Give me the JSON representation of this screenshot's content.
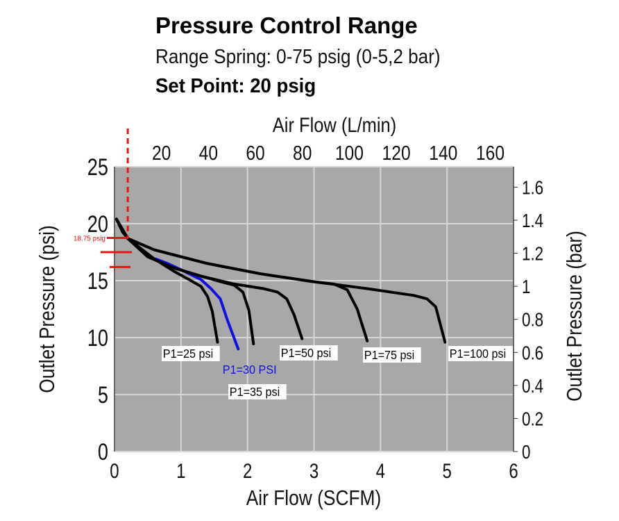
{
  "header": {
    "title": "Pressure Control Range",
    "subtitle": "Range Spring: 0-75 psig (0-5,2 bar)",
    "set_point": "Set Point: 20 psig"
  },
  "chart_data": {
    "type": "line",
    "title": "Pressure Control Range",
    "xlabel": "Air Flow (SCFM)",
    "ylabel": "Outlet Pressure (psi)",
    "x2label": "Air Flow (L/min)",
    "y2label": "Outlet Pressure (bar)",
    "xlim": [
      0,
      6
    ],
    "ylim": [
      0,
      25
    ],
    "xticks": [
      "0",
      "1",
      "2",
      "3",
      "4",
      "5",
      "6"
    ],
    "yticks": [
      "0",
      "5",
      "10",
      "15",
      "20",
      "25"
    ],
    "x2ticks": [
      "20",
      "40",
      "60",
      "80",
      "100",
      "120",
      "140",
      "160"
    ],
    "y2ticks": [
      "0",
      "0.2",
      "0.4",
      "0.6",
      "0.8",
      "1",
      "1.2",
      "1.4",
      "1.6"
    ],
    "grid": true,
    "colors": {
      "background": "#a8a8a8",
      "curve": "#000000",
      "highlight": "#1010e0",
      "marker": "#ee1111"
    },
    "series": [
      {
        "name": "P1=25 psi",
        "color": "#000000",
        "points": [
          [
            0.03,
            20.4
          ],
          [
            0.12,
            19.3
          ],
          [
            0.2,
            18.7
          ],
          [
            0.4,
            17.8
          ],
          [
            0.6,
            16.9
          ],
          [
            0.9,
            15.8
          ],
          [
            1.15,
            15.0
          ],
          [
            1.3,
            14.5
          ],
          [
            1.4,
            13.6
          ],
          [
            1.47,
            12.3
          ],
          [
            1.55,
            9.6
          ]
        ]
      },
      {
        "name": "P1=30 PSI",
        "color": "#1010e0",
        "points": [
          [
            0.62,
            16.9
          ],
          [
            0.8,
            16.5
          ],
          [
            1.02,
            15.9
          ],
          [
            1.3,
            15.1
          ],
          [
            1.45,
            14.3
          ],
          [
            1.59,
            13.4
          ],
          [
            1.7,
            11.5
          ],
          [
            1.86,
            9.0
          ]
        ]
      },
      {
        "name": "P1=35 psi",
        "color": "#000000",
        "points": [
          [
            0.03,
            20.4
          ],
          [
            0.12,
            19.3
          ],
          [
            0.2,
            18.7
          ],
          [
            0.5,
            17.1
          ],
          [
            0.9,
            16.1
          ],
          [
            1.3,
            15.4
          ],
          [
            1.6,
            14.9
          ],
          [
            1.8,
            14.6
          ],
          [
            1.93,
            14.0
          ],
          [
            2.02,
            12.4
          ],
          [
            2.09,
            9.45
          ]
        ]
      },
      {
        "name": "P1=50 psi",
        "color": "#000000",
        "points": [
          [
            0.03,
            20.4
          ],
          [
            0.12,
            19.3
          ],
          [
            0.2,
            18.7
          ],
          [
            0.5,
            17.1
          ],
          [
            0.9,
            16.1
          ],
          [
            1.3,
            15.4
          ],
          [
            1.8,
            14.7
          ],
          [
            2.24,
            14.3
          ],
          [
            2.45,
            14.0
          ],
          [
            2.59,
            13.4
          ],
          [
            2.7,
            12.0
          ],
          [
            2.82,
            9.9
          ]
        ]
      },
      {
        "name": "P1=75 psi",
        "color": "#000000",
        "points": [
          [
            0.03,
            20.4
          ],
          [
            0.2,
            18.7
          ],
          [
            0.6,
            17.7
          ],
          [
            1.4,
            16.5
          ],
          [
            2.2,
            15.6
          ],
          [
            3.0,
            14.9
          ],
          [
            3.3,
            14.7
          ],
          [
            3.5,
            14.2
          ],
          [
            3.65,
            12.5
          ],
          [
            3.8,
            9.7
          ]
        ]
      },
      {
        "name": "P1=100 psi",
        "color": "#000000",
        "points": [
          [
            0.03,
            20.4
          ],
          [
            0.2,
            18.7
          ],
          [
            0.6,
            17.7
          ],
          [
            1.4,
            16.5
          ],
          [
            2.2,
            15.6
          ],
          [
            3.0,
            14.9
          ],
          [
            3.8,
            14.3
          ],
          [
            4.5,
            13.7
          ],
          [
            4.7,
            13.4
          ],
          [
            4.83,
            12.7
          ],
          [
            4.97,
            9.6
          ]
        ]
      }
    ],
    "annotations": {
      "set_point_flow": 0.2,
      "marker_label": "18.75 psig",
      "marker_levels": [
        18.75,
        17.5,
        16.2
      ]
    }
  }
}
